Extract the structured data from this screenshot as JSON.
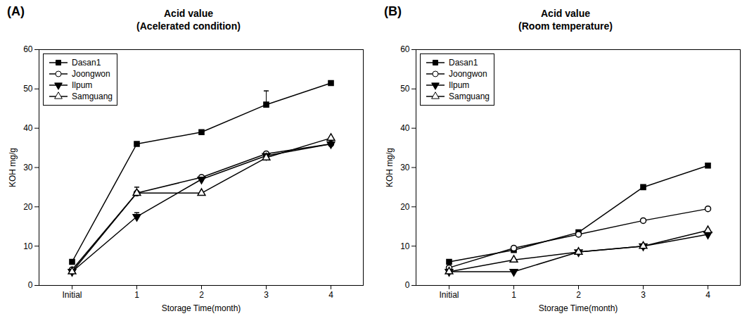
{
  "chart_data": [
    {
      "type": "line",
      "title": "Acid value",
      "subtitle": "(Acelerated condition)",
      "annotations": [
        "(A)"
      ],
      "categories": [
        "Initial",
        "1",
        "2",
        "3",
        "4"
      ],
      "series": [
        {
          "name": "Dasan1",
          "color": "black",
          "marker": "square",
          "values": [
            6.0,
            36.0,
            39.0,
            46.0,
            51.5
          ],
          "error_bars": [
            0,
            0,
            0,
            3.5,
            0
          ]
        },
        {
          "name": "Joongwon",
          "color": "black",
          "marker": "circle-open",
          "values": [
            4.0,
            23.5,
            27.5,
            33.5,
            36.0
          ],
          "error_bars": [
            0,
            1.5,
            0,
            0,
            0
          ]
        },
        {
          "name": "Ilpum",
          "color": "black",
          "marker": "triangle-down",
          "values": [
            3.5,
            17.5,
            27.0,
            33.0,
            36.0
          ],
          "error_bars": [
            0,
            1.0,
            0,
            0,
            0
          ]
        },
        {
          "name": "Samguang",
          "color": "black",
          "marker": "triangle-up-open",
          "values": [
            3.5,
            23.5,
            23.5,
            32.5,
            37.5
          ],
          "error_bars": [
            0,
            0,
            0,
            0,
            0
          ]
        }
      ],
      "xlabel": "Storage Time(month)",
      "ylabel": "KOH mg/g",
      "ylim": [
        0,
        60
      ],
      "yticks": [
        0,
        10,
        20,
        30,
        40,
        50,
        60
      ],
      "legend": "upper left",
      "grid": false
    },
    {
      "type": "line",
      "title": "Acid value",
      "subtitle": "(Room temperature)",
      "annotations": [
        "(B)"
      ],
      "categories": [
        "Initial",
        "1",
        "2",
        "3",
        "4"
      ],
      "series": [
        {
          "name": "Dasan1",
          "color": "black",
          "marker": "square",
          "values": [
            6.0,
            9.0,
            13.5,
            25.0,
            30.5
          ],
          "error_bars": [
            0,
            0,
            0,
            0,
            0
          ]
        },
        {
          "name": "Joongwon",
          "color": "black",
          "marker": "circle-open",
          "values": [
            4.5,
            9.5,
            13.0,
            16.5,
            19.5
          ],
          "error_bars": [
            0,
            0,
            0,
            0,
            0
          ]
        },
        {
          "name": "Ilpum",
          "color": "black",
          "marker": "triangle-down",
          "values": [
            3.5,
            3.5,
            8.5,
            10.0,
            13.0
          ],
          "error_bars": [
            0,
            0,
            0,
            0.5,
            0
          ]
        },
        {
          "name": "Samguang",
          "color": "black",
          "marker": "triangle-up-open",
          "values": [
            3.5,
            6.5,
            8.5,
            10.0,
            14.0
          ],
          "error_bars": [
            0,
            0,
            0,
            0,
            0
          ]
        }
      ],
      "xlabel": "Storage Time(month)",
      "ylabel": "KOH mg/g",
      "ylim": [
        0,
        60
      ],
      "yticks": [
        0,
        10,
        20,
        30,
        40,
        50,
        60
      ],
      "legend": "upper left",
      "grid": false
    }
  ]
}
